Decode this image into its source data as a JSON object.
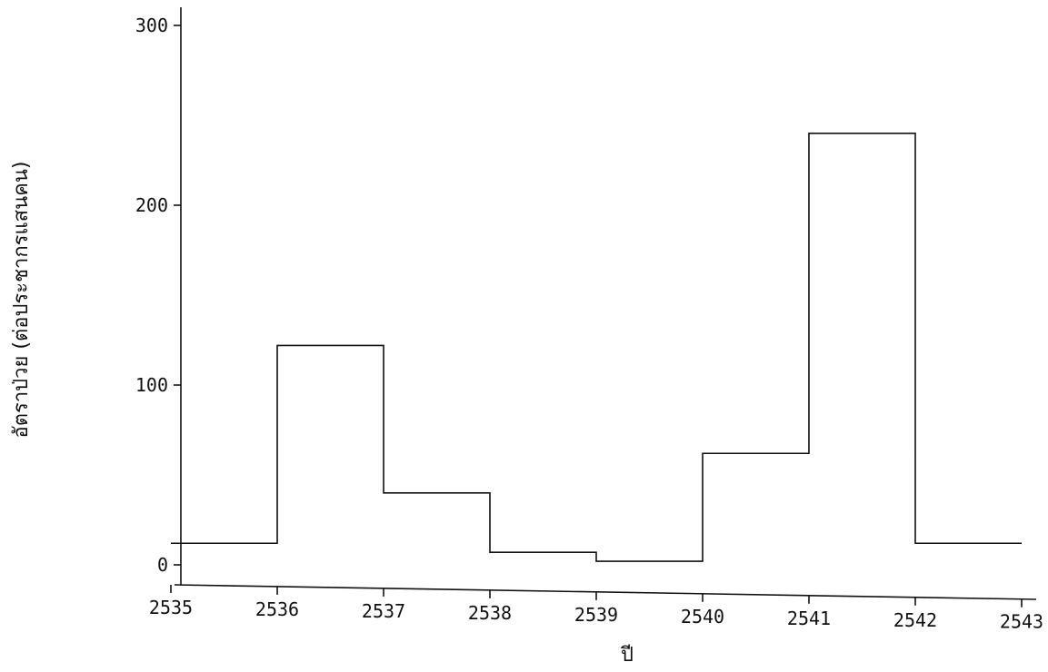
{
  "chart_data": {
    "type": "line",
    "style": "step",
    "title": "",
    "xlabel": "ปี",
    "ylabel": "อัตราป่วย (ต่อประชากรแสนคน)",
    "x_ticks": [
      "2535",
      "2536",
      "2537",
      "2538",
      "2539",
      "2540",
      "2541",
      "2542",
      "2543"
    ],
    "y_ticks": [
      "0",
      "100",
      "200",
      "300"
    ],
    "xlim": [
      2535,
      2543
    ],
    "ylim": [
      0,
      300
    ],
    "grid": false,
    "legend": "none",
    "series": [
      {
        "x": [
          2535,
          2536,
          2537,
          2538,
          2539,
          2540,
          2541,
          2542,
          2543
        ],
        "values": [
          12,
          122,
          40,
          7,
          2,
          62,
          240,
          12,
          12
        ]
      }
    ]
  }
}
